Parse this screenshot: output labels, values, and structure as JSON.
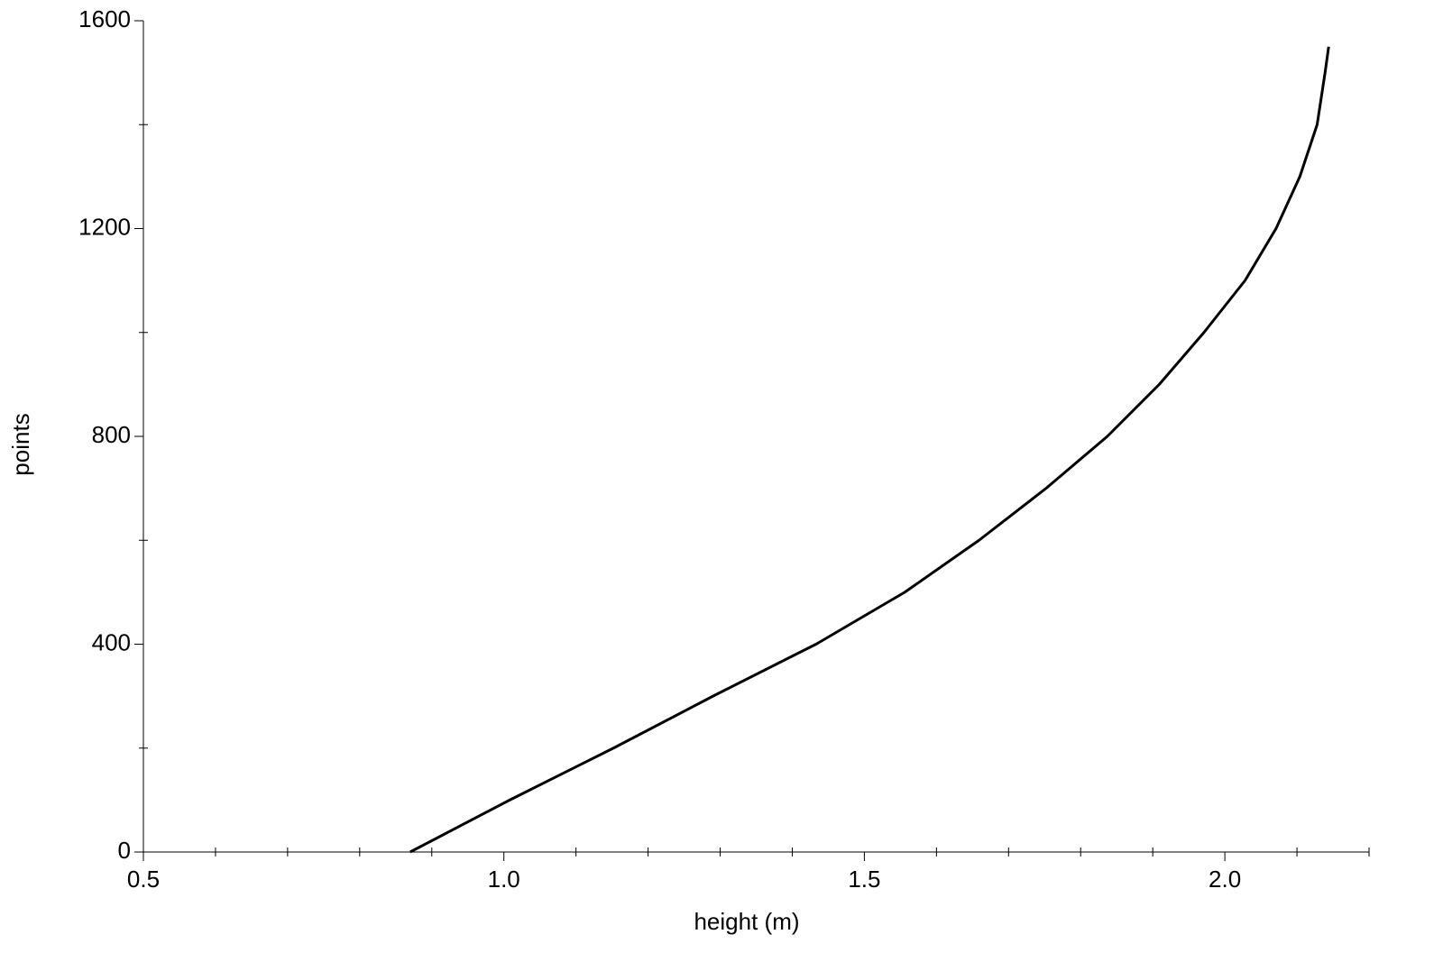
{
  "chart_data": {
    "type": "line",
    "x_label": "height (m)",
    "y_label": "points",
    "x": [
      0.87,
      1.008,
      1.152,
      1.29,
      1.433,
      1.556,
      1.659,
      1.752,
      1.837,
      1.909,
      1.971,
      2.028,
      2.071,
      2.104,
      2.128,
      2.139,
      2.144
    ],
    "series": [
      {
        "color": "#000000",
        "values": [
          0,
          100,
          200,
          300,
          400,
          500,
          600,
          700,
          800,
          900,
          1000,
          1100,
          1200,
          1300,
          1400,
          1500,
          1550
        ]
      }
    ],
    "xlim": [
      0.5,
      2.2
    ],
    "ylim": [
      0,
      1600
    ],
    "xticks": [
      {
        "value": 0.5,
        "label": "0.5"
      },
      {
        "value": 1,
        "label": "1.0"
      },
      {
        "value": 1.5,
        "label": "1.5"
      },
      {
        "value": 2,
        "label": "2.0"
      }
    ],
    "xminorticks": [
      0.6,
      0.7,
      0.8,
      0.9,
      1.1,
      1.2,
      1.3,
      1.4,
      1.6,
      1.7,
      1.8,
      1.9,
      2.1,
      2.2
    ],
    "yticks": [
      0,
      400,
      800,
      1200,
      1600
    ],
    "yminorticks": [
      200,
      600,
      1000,
      1400
    ],
    "grid": false
  }
}
